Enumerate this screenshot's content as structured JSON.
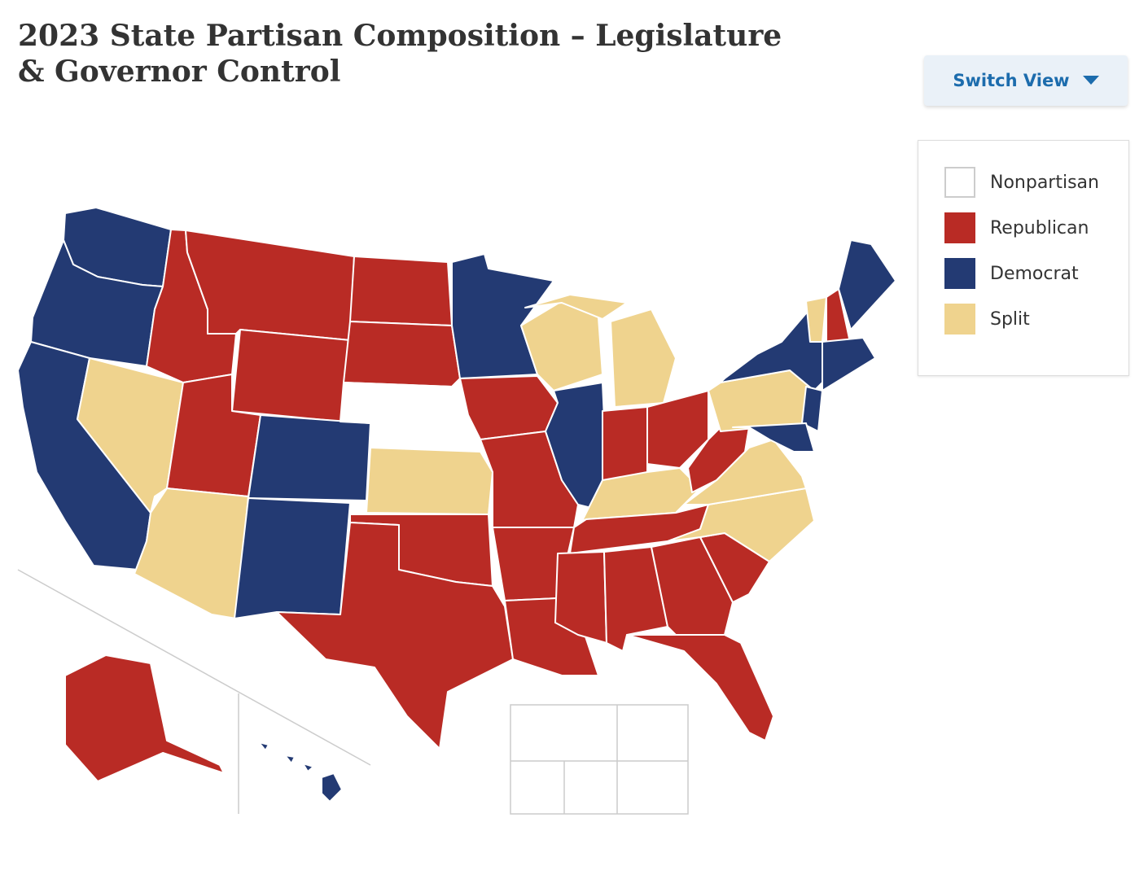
{
  "header": {
    "title": "2023 State Partisan Composition – Legislature & Governor Control",
    "switch_view": "Switch View"
  },
  "legend": [
    {
      "label": "Nonpartisan",
      "color": "#ffffff"
    },
    {
      "label": "Republican",
      "color": "#b92b25"
    },
    {
      "label": "Democrat",
      "color": "#233a73"
    },
    {
      "label": "Split",
      "color": "#efd38e"
    }
  ]
}
